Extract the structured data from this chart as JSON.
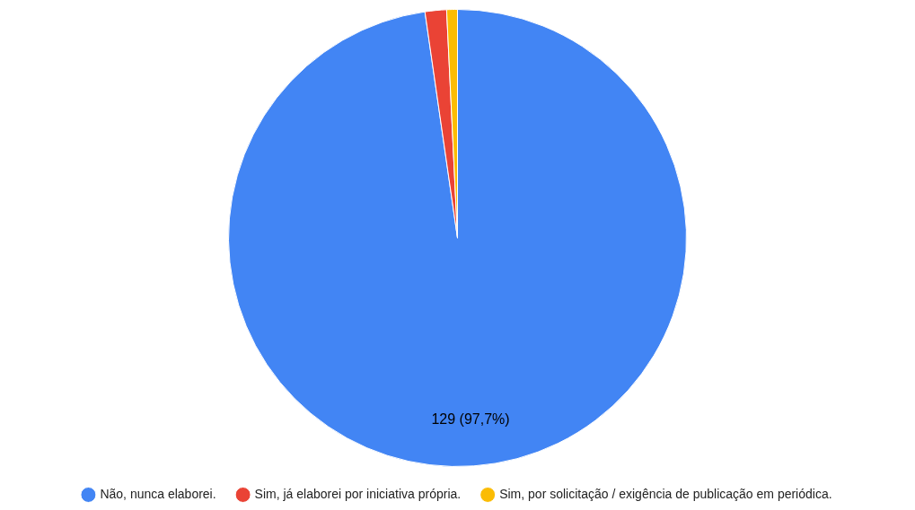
{
  "chart_data": {
    "type": "pie",
    "categories": [
      "Não, nunca elaborei.",
      "Sim, já elaborei por iniciativa própria.",
      "Sim, por solicitação / exigência de publicação em periódica."
    ],
    "values": [
      129,
      2,
      1
    ],
    "colors": [
      "#4285f4",
      "#ea4335",
      "#fbbc04"
    ],
    "value_labels": [
      "129 (97,7%)",
      null,
      null
    ],
    "legend": "bottom"
  }
}
